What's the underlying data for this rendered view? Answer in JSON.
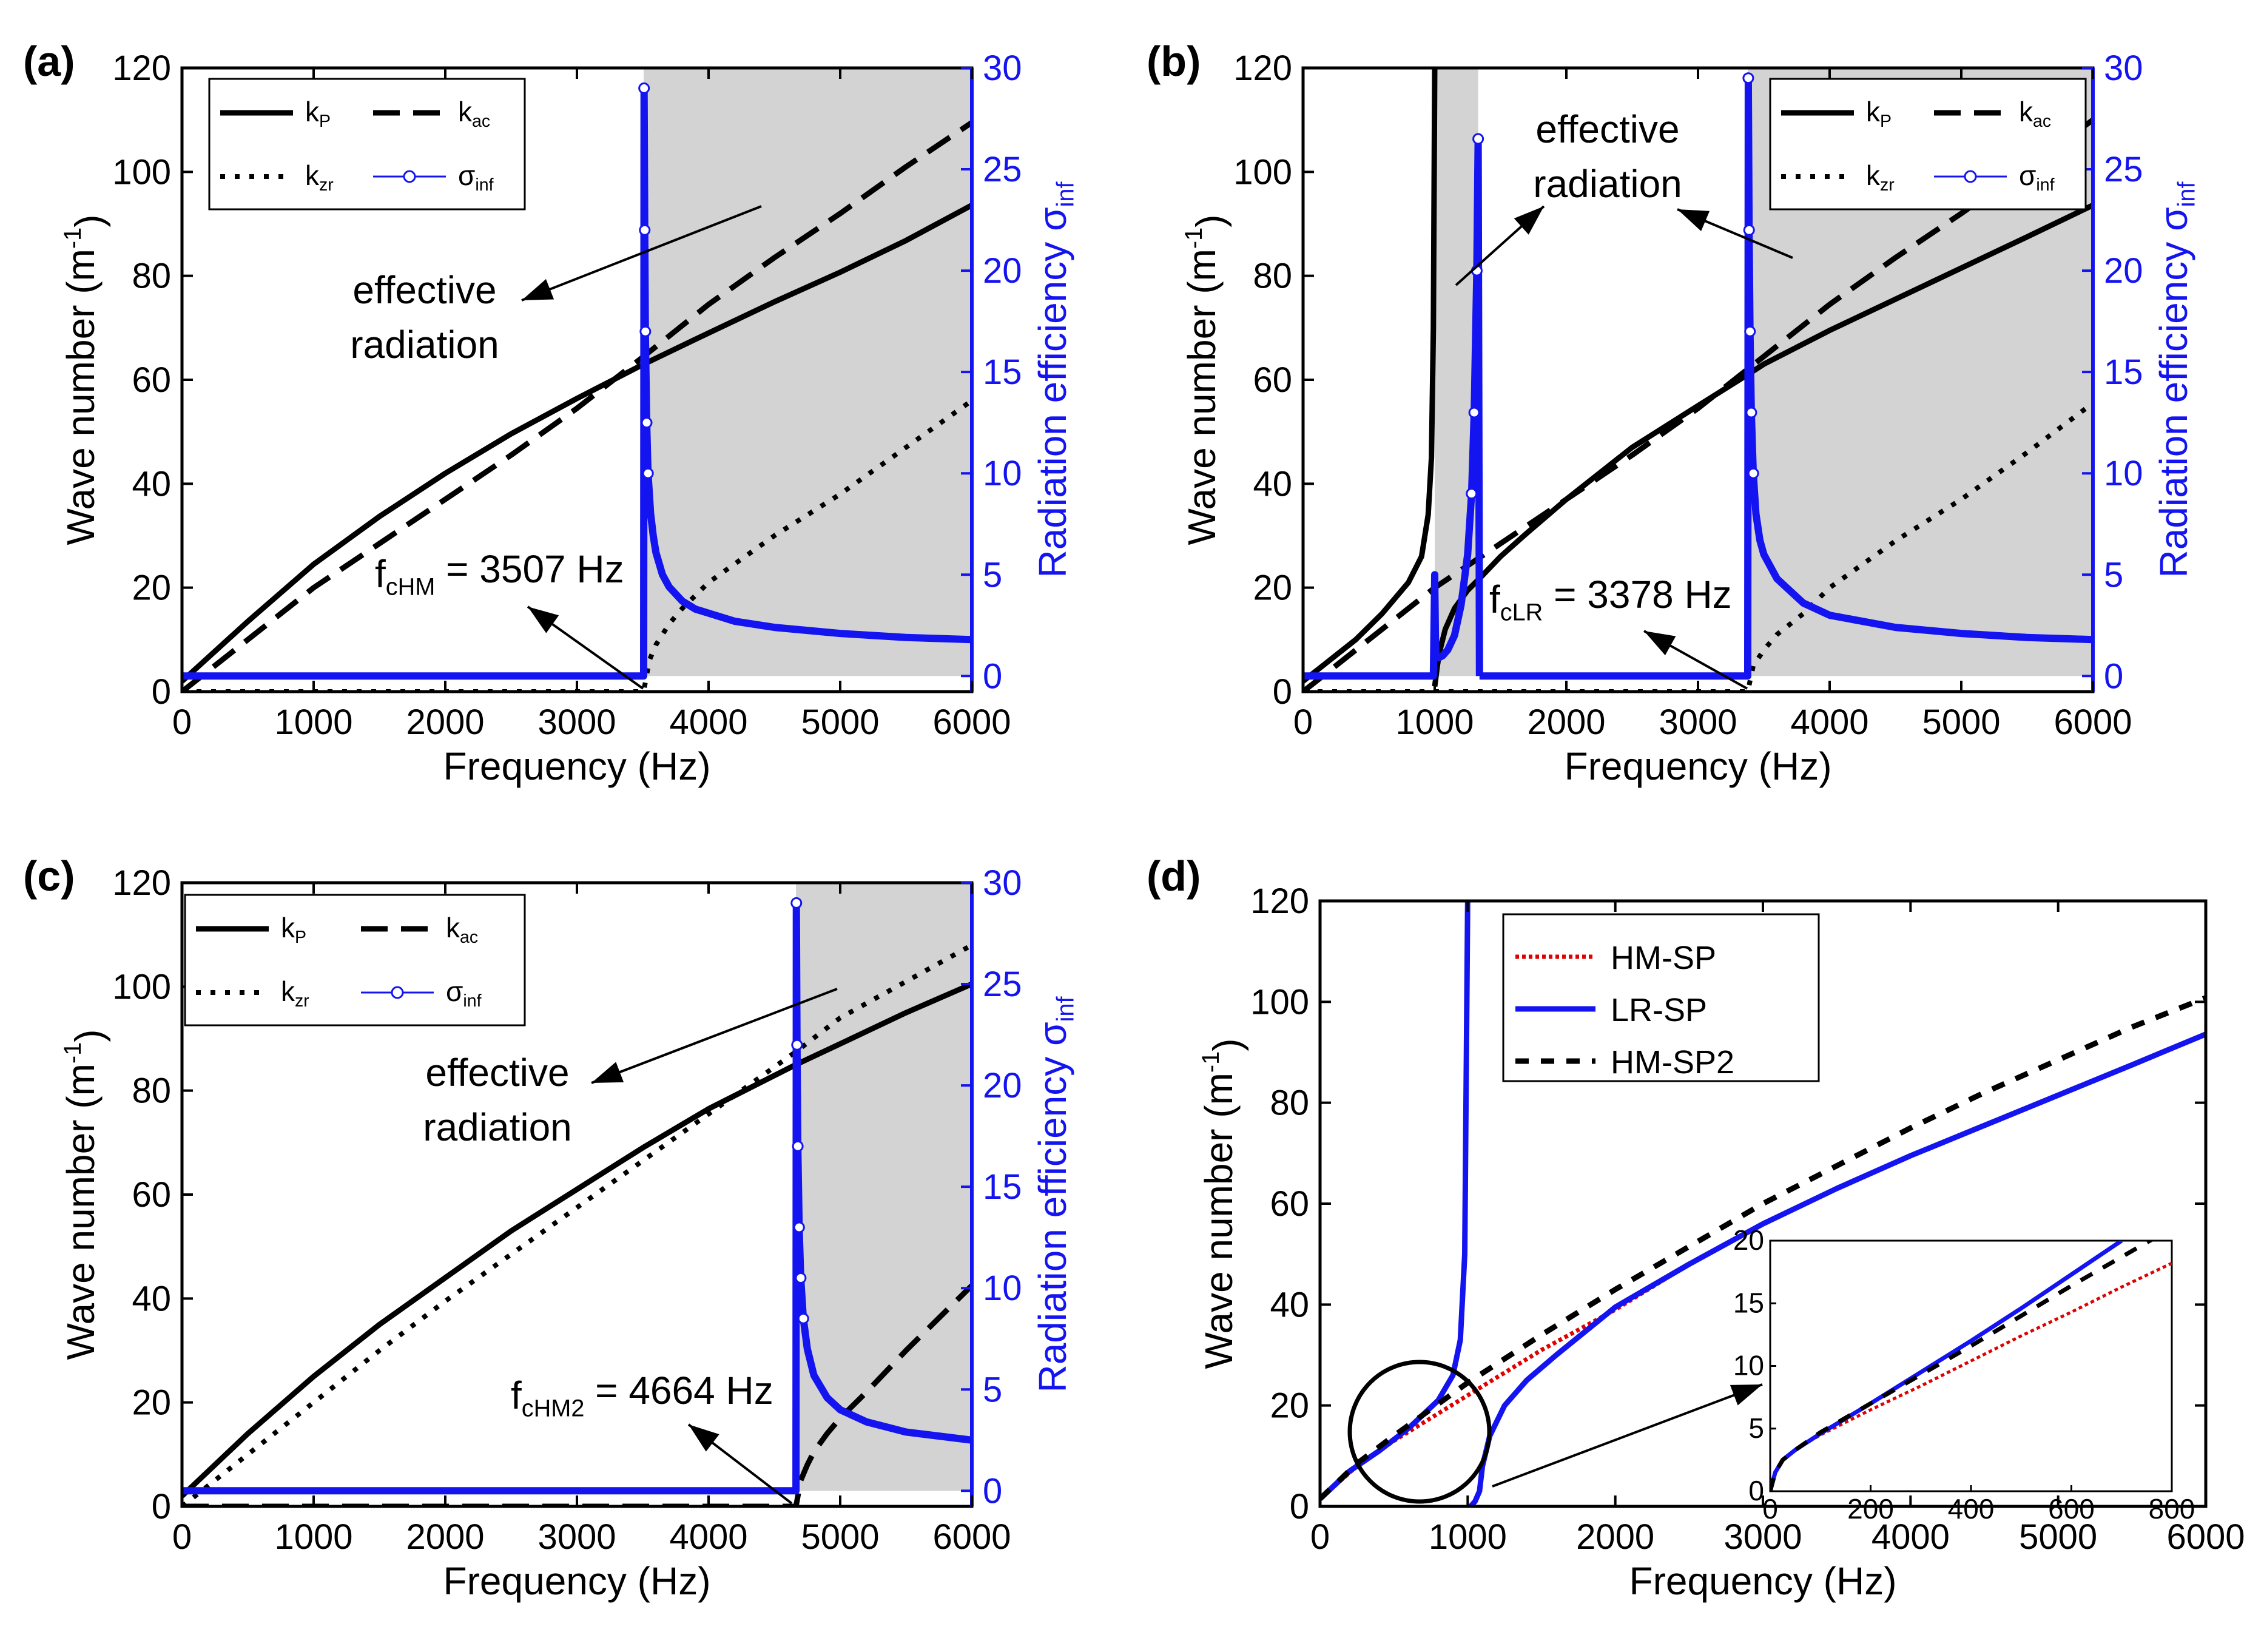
{
  "colors": {
    "black": "#000000",
    "blue": "#1414f0",
    "red": "#e00000",
    "shade": "#d3d3d3"
  },
  "chart_data": [
    {
      "panel": "(a)",
      "type": "line",
      "xlabel": "Frequency (Hz)",
      "ylabel": "Wave number (m",
      "ylabel_sup": "-1",
      "ylabel_end": ")",
      "y2label": "Radiation efficiency σ",
      "y2label_sub": "inf",
      "xlim": [
        0,
        6000
      ],
      "ylim": [
        0,
        120
      ],
      "y2lim": [
        0,
        30
      ],
      "xticks": [
        0,
        1000,
        2000,
        3000,
        4000,
        5000,
        6000
      ],
      "yticks": [
        0,
        20,
        40,
        60,
        80,
        100,
        120
      ],
      "y2ticks": [
        0,
        5,
        10,
        15,
        20,
        25,
        30
      ],
      "shade_from": 3507,
      "legend": [
        {
          "name": "k",
          "sub": "P",
          "style": "solid"
        },
        {
          "name": "k",
          "sub": "ac",
          "style": "dashdot"
        },
        {
          "name": "k",
          "sub": "zr",
          "style": "dot"
        },
        {
          "name": "σ",
          "sub": "inf",
          "style": "circle"
        }
      ],
      "series": [
        {
          "name": "kP",
          "style": "solid",
          "x": [
            0,
            500,
            1000,
            1500,
            2000,
            2500,
            3000,
            3507,
            4000,
            4500,
            5000,
            5500,
            6000
          ],
          "y": [
            2,
            13.5,
            24.5,
            33.7,
            42,
            49.6,
            56.4,
            63,
            69,
            75,
            80.7,
            86.8,
            93.6
          ]
        },
        {
          "name": "kac",
          "style": "dashdot",
          "x": [
            0,
            500,
            1000,
            1500,
            2000,
            2500,
            3000,
            3507,
            4000,
            4500,
            5000,
            5500,
            6000
          ],
          "y": [
            0,
            10,
            20,
            28.5,
            37,
            45.5,
            54.5,
            64.5,
            74.5,
            83.5,
            92,
            101,
            109.5
          ]
        },
        {
          "name": "kzr",
          "style": "dot",
          "x": [
            0,
            3500,
            3507,
            3550,
            3600,
            3700,
            3800,
            4000,
            4500,
            5000,
            5500,
            6000
          ],
          "y": [
            0,
            0,
            0,
            6,
            9,
            13,
            16,
            21,
            30,
            38,
            47,
            56
          ]
        },
        {
          "name": "sigma",
          "style": "circle",
          "x": [
            0,
            3450,
            3507,
            3510,
            3515,
            3520,
            3530,
            3540,
            3560,
            3580,
            3600,
            3650,
            3700,
            3800,
            3900,
            4000,
            4200,
            4500,
            5000,
            5500,
            6000
          ],
          "y": [
            0,
            0,
            0,
            29,
            22,
            17,
            12.5,
            10,
            8,
            6.9,
            6.1,
            5,
            4.4,
            3.7,
            3.3,
            3.1,
            2.7,
            2.4,
            2.1,
            1.9,
            1.8
          ]
        }
      ],
      "annotations": [
        {
          "text": "effective",
          "text2": "radiation"
        },
        {
          "text": "f",
          "sub": "cHM",
          "rest": " = 3507 Hz"
        }
      ]
    },
    {
      "panel": "(b)",
      "type": "line",
      "xlabel": "Frequency (Hz)",
      "ylabel": "Wave number (m",
      "ylabel_sup": "-1",
      "ylabel_end": ")",
      "y2label": "Radiation efficiency σ",
      "y2label_sub": "inf",
      "xlim": [
        0,
        6000
      ],
      "ylim": [
        0,
        120
      ],
      "y2lim": [
        0,
        30
      ],
      "xticks": [
        0,
        1000,
        2000,
        3000,
        4000,
        5000,
        6000
      ],
      "yticks": [
        0,
        20,
        40,
        60,
        80,
        100,
        120
      ],
      "y2ticks": [
        0,
        5,
        10,
        15,
        20,
        25,
        30
      ],
      "shade_bands": [
        [
          1000,
          1330
        ],
        [
          3378,
          6000
        ]
      ],
      "legend": [
        {
          "name": "k",
          "sub": "P",
          "style": "solid"
        },
        {
          "name": "k",
          "sub": "ac",
          "style": "dashdot"
        },
        {
          "name": "k",
          "sub": "zr",
          "style": "dot"
        },
        {
          "name": "σ",
          "sub": "inf",
          "style": "circle"
        }
      ],
      "series": [
        {
          "name": "kP_1",
          "style": "solid",
          "x": [
            0,
            200,
            400,
            600,
            800,
            900,
            950,
            975,
            990,
            1000
          ],
          "y": [
            2,
            6,
            10,
            15,
            21,
            26,
            34,
            45,
            70,
            120
          ]
        },
        {
          "name": "kP_2",
          "style": "solid",
          "x": [
            1000,
            1005,
            1010,
            1020,
            1040,
            1080,
            1150,
            1250,
            1350,
            1500,
            1700,
            2000,
            2500,
            3000,
            3378,
            3500,
            4000,
            4500,
            5000,
            5500,
            6000
          ],
          "y": [
            1,
            2,
            3,
            5,
            8,
            12,
            16,
            19.5,
            22,
            26,
            30.5,
            37,
            47,
            55,
            61,
            63,
            69.5,
            75.5,
            81.5,
            87.5,
            93.6
          ]
        },
        {
          "name": "kac",
          "style": "dashdot",
          "x": [
            0,
            500,
            1000,
            1500,
            2000,
            2500,
            3000,
            3500,
            4000,
            4500,
            5000,
            5500,
            6000
          ],
          "y": [
            0,
            10,
            20,
            28.5,
            37,
            45.5,
            54.5,
            64.5,
            74.5,
            83.5,
            92,
            101,
            110
          ]
        },
        {
          "name": "kzr",
          "style": "dot",
          "x": [
            0,
            3370,
            3378,
            3420,
            3500,
            3600,
            3800,
            4000,
            4500,
            5000,
            5500,
            6000
          ],
          "y": [
            0,
            0,
            0,
            5,
            8,
            11,
            15,
            20,
            29,
            37,
            46,
            55.5
          ]
        },
        {
          "name": "sigma_1",
          "style": "circle",
          "x": [
            0,
            990,
            1000,
            1005,
            1010,
            1030,
            1060,
            1100,
            1150,
            1200,
            1250,
            1280,
            1300,
            1320,
            1330,
            1340
          ],
          "y": [
            0,
            0,
            5,
            2,
            1,
            0.9,
            1,
            1.3,
            2,
            3.5,
            6,
            9,
            13,
            20,
            26.5,
            0
          ]
        },
        {
          "name": "sigma_2",
          "style": "circle",
          "x": [
            1340,
            3370,
            3378,
            3382,
            3388,
            3395,
            3405,
            3420,
            3440,
            3470,
            3500,
            3600,
            3700,
            3800,
            4000,
            4500,
            5000,
            5500,
            6000
          ],
          "y": [
            0,
            0,
            0,
            29.5,
            22,
            17,
            13,
            10,
            8,
            6.7,
            6,
            4.8,
            4.2,
            3.6,
            3,
            2.4,
            2.1,
            1.9,
            1.8
          ]
        }
      ],
      "annotations": [
        {
          "text": "effective",
          "text2": "radiation"
        },
        {
          "text": "f",
          "sub": "cLR",
          "rest": " = 3378 Hz"
        }
      ]
    },
    {
      "panel": "(c)",
      "type": "line",
      "xlabel": "Frequency (Hz)",
      "ylabel": "Wave number (m",
      "ylabel_sup": "-1",
      "ylabel_end": ")",
      "y2label": "Radiation efficiency σ",
      "y2label_sub": "inf",
      "xlim": [
        0,
        6000
      ],
      "ylim": [
        0,
        120
      ],
      "y2lim": [
        0,
        30
      ],
      "xticks": [
        0,
        1000,
        2000,
        3000,
        4000,
        5000,
        6000
      ],
      "yticks": [
        0,
        20,
        40,
        60,
        80,
        100,
        120
      ],
      "y2ticks": [
        0,
        5,
        10,
        15,
        20,
        25,
        30
      ],
      "shade_from": 4664,
      "legend": [
        {
          "name": "k",
          "sub": "P",
          "style": "solid"
        },
        {
          "name": "k",
          "sub": "ac",
          "style": "dashdot"
        },
        {
          "name": "k",
          "sub": "zr",
          "style": "dot"
        },
        {
          "name": "σ",
          "sub": "inf",
          "style": "circle"
        }
      ],
      "series": [
        {
          "name": "kP",
          "style": "solid",
          "x": [
            0,
            500,
            1000,
            1500,
            2000,
            2500,
            3000,
            3500,
            4000,
            4664,
            5000,
            5500,
            6000
          ],
          "y": [
            2,
            14,
            25,
            35,
            44,
            53,
            61,
            69,
            76.5,
            85,
            89,
            95,
            100.5
          ]
        },
        {
          "name": "kac",
          "style": "dot",
          "x": [
            0,
            500,
            1000,
            1500,
            2000,
            2500,
            3000,
            3500,
            4000,
            4664,
            5000,
            5500,
            6000
          ],
          "y": [
            0,
            10,
            20,
            30,
            39.5,
            48.5,
            57.5,
            66.5,
            75.5,
            87.5,
            94,
            101,
            108
          ]
        },
        {
          "name": "kzr",
          "style": "dashdot",
          "x": [
            0,
            4650,
            4664,
            4700,
            4750,
            4800,
            4900,
            5000,
            5200,
            5500,
            6000
          ],
          "y": [
            0,
            0,
            0,
            5,
            8,
            10.5,
            14,
            17,
            22,
            30,
            42.5
          ]
        },
        {
          "name": "sigma",
          "style": "circle",
          "x": [
            0,
            4600,
            4664,
            4667,
            4672,
            4678,
            4688,
            4700,
            4720,
            4750,
            4800,
            4900,
            5000,
            5200,
            5500,
            6000
          ],
          "y": [
            0,
            0,
            0,
            29,
            22,
            17,
            13,
            10.5,
            8.5,
            7,
            5.7,
            4.6,
            4,
            3.4,
            2.9,
            2.5
          ]
        }
      ],
      "annotations": [
        {
          "text": "effective",
          "text2": "radiation"
        },
        {
          "text": "f",
          "sub": "cHM2",
          "rest": " = 4664 Hz"
        }
      ]
    },
    {
      "panel": "(d)",
      "type": "line",
      "xlabel": "Frequency (Hz)",
      "ylabel": "Wave number (m",
      "ylabel_sup": "-1",
      "ylabel_end": ")",
      "xlim": [
        0,
        6000
      ],
      "ylim": [
        0,
        120
      ],
      "xticks": [
        0,
        1000,
        2000,
        3000,
        4000,
        5000,
        6000
      ],
      "yticks": [
        0,
        20,
        40,
        60,
        80,
        100,
        120
      ],
      "legend": [
        {
          "name": "HM-SP",
          "style": "red-dot"
        },
        {
          "name": "LR-SP",
          "style": "blue-solid"
        },
        {
          "name": "HM-SP2",
          "style": "dash"
        }
      ],
      "series": [
        {
          "name": "HM-SP",
          "style": "red-dot",
          "x": [
            0,
            250,
            500,
            1000,
            1500,
            2000,
            2500,
            3000,
            3500,
            4000,
            4500,
            5000,
            5500,
            6000
          ],
          "y": [
            1.5,
            8,
            13,
            22,
            31,
            39,
            48,
            56,
            63,
            69.5,
            75.5,
            81.5,
            87.5,
            93.6
          ]
        },
        {
          "name": "LR-SP_1",
          "style": "blue-solid",
          "x": [
            0,
            200,
            400,
            600,
            800,
            900,
            950,
            980,
            1000
          ],
          "y": [
            1.5,
            7,
            11,
            15.5,
            21,
            26,
            33,
            50,
            120
          ]
        },
        {
          "name": "LR-SP_2",
          "style": "blue-solid",
          "x": [
            1020,
            1050,
            1080,
            1100,
            1150,
            1250,
            1400,
            1600,
            2000,
            2500,
            3000,
            3500,
            4000,
            4500,
            5000,
            5500,
            6000
          ],
          "y": [
            0,
            1,
            3,
            8,
            14,
            20,
            25,
            30,
            39.5,
            48,
            56,
            63,
            69.5,
            75.5,
            81.5,
            87.5,
            93.6
          ]
        },
        {
          "name": "HM-SP2",
          "style": "dash",
          "x": [
            0,
            250,
            500,
            1000,
            1500,
            2000,
            2500,
            3000,
            3500,
            4000,
            4500,
            5000,
            5500,
            6000
          ],
          "y": [
            1.5,
            8.5,
            14,
            24.5,
            34,
            43,
            51.5,
            60,
            67.5,
            75,
            82,
            88.5,
            95,
            100.8
          ]
        }
      ],
      "inset": {
        "xlim": [
          0,
          800
        ],
        "ylim": [
          0,
          20
        ],
        "xticks": [
          0,
          200,
          400,
          600,
          800
        ],
        "yticks": [
          0,
          5,
          10,
          15,
          20
        ],
        "series": [
          {
            "name": "HM-SP",
            "style": "red-dot",
            "x": [
              0,
              10,
              25,
              50,
              100,
              200,
              300,
              400,
              500,
              600,
              700,
              800
            ],
            "y": [
              0,
              1.5,
              2.5,
              3.3,
              4.5,
              6.5,
              8.4,
              10.4,
              12.4,
              14.3,
              16.3,
              18.2
            ]
          },
          {
            "name": "LR-SP",
            "style": "blue-solid",
            "x": [
              0,
              10,
              25,
              50,
              100,
              200,
              300,
              400,
              500,
              600,
              700
            ],
            "y": [
              0,
              1.5,
              2.5,
              3.3,
              4.6,
              7,
              9.5,
              12,
              14.6,
              17.3,
              20
            ]
          },
          {
            "name": "HM-SP2",
            "style": "dash",
            "x": [
              0,
              10,
              25,
              50,
              100,
              200,
              300,
              400,
              500,
              600,
              700,
              800
            ],
            "y": [
              0,
              1.5,
              2.5,
              3.3,
              4.7,
              7,
              9.3,
              11.6,
              14,
              16.4,
              18.7,
              21
            ]
          }
        ]
      }
    }
  ]
}
